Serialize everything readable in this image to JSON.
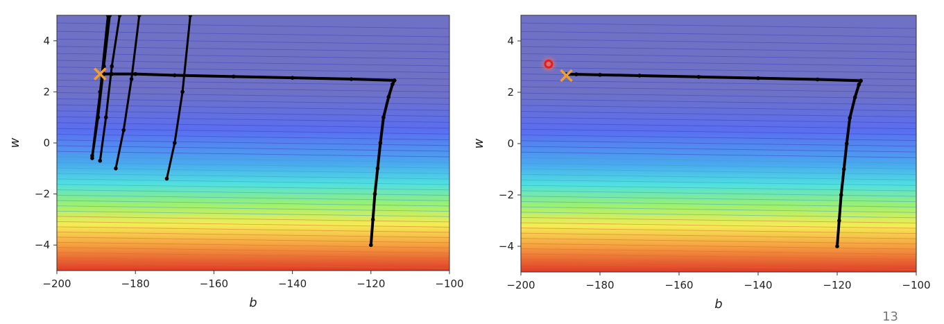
{
  "page_number": "13",
  "colors": {
    "low": "#6a6fd8",
    "high": "#d84a2a",
    "path": "#000000",
    "target": "#f0a030",
    "marker": "#e0201c"
  },
  "chart_data": [
    {
      "type": "line",
      "xlabel": "b",
      "ylabel": "w",
      "xlim": [
        -200,
        -100
      ],
      "ylim": [
        -5,
        5
      ],
      "xticks": [
        "−200",
        "−180",
        "−160",
        "−140",
        "−120",
        "−100"
      ],
      "yticks": [
        "4",
        "2",
        "0",
        "−2",
        "−4"
      ],
      "background": "loss contour (jet colormap), high near w=-5",
      "target_marker": {
        "shape": "x",
        "x": -189,
        "y": 2.7,
        "color": "#f0a030"
      },
      "series": [
        {
          "values": [
            [
              -120,
              -4.0
            ],
            [
              -119.5,
              -3.0
            ],
            [
              -119,
              -2.0
            ],
            [
              -118.3,
              -1.0
            ],
            [
              -117.6,
              0.0
            ],
            [
              -116.8,
              1.0
            ],
            [
              -115.5,
              1.8
            ],
            [
              -114.5,
              2.3
            ],
            [
              -114,
              2.45
            ],
            [
              -125,
              2.5
            ],
            [
              -140,
              2.55
            ],
            [
              -155,
              2.6
            ],
            [
              -170,
              2.65
            ],
            [
              -180,
              2.7
            ],
            [
              -186,
              2.7
            ],
            [
              -188,
              2.7
            ],
            [
              -189,
              2.7
            ]
          ]
        },
        {
          "values": [
            [
              -172,
              -1.4
            ],
            [
              -170,
              0.0
            ],
            [
              -168,
              2.0
            ],
            [
              -166,
              5.0
            ]
          ]
        },
        {
          "values": [
            [
              -185,
              -1.0
            ],
            [
              -183,
              0.5
            ],
            [
              -181,
              2.5
            ],
            [
              -179,
              5.0
            ]
          ]
        },
        {
          "values": [
            [
              -189,
              -0.7
            ],
            [
              -187.5,
              1.0
            ],
            [
              -186,
              3.0
            ],
            [
              -184,
              5.0
            ]
          ]
        },
        {
          "values": [
            [
              -191,
              -0.6
            ],
            [
              -189.5,
              1.0
            ],
            [
              -188,
              3.0
            ],
            [
              -186.5,
              5.0
            ]
          ]
        },
        {
          "values": [
            [
              -191,
              -0.5
            ],
            [
              -189,
              2.0
            ],
            [
              -187,
              5.0
            ]
          ]
        }
      ]
    },
    {
      "type": "line",
      "xlabel": "b",
      "ylabel": "w",
      "xlim": [
        -200,
        -100
      ],
      "ylim": [
        -5,
        5
      ],
      "xticks": [
        "−200",
        "−180",
        "−160",
        "−140",
        "−120",
        "−100"
      ],
      "yticks": [
        "4",
        "2",
        "0",
        "−2",
        "−4"
      ],
      "background": "loss contour (jet colormap), high near w=-5",
      "target_marker": {
        "shape": "x",
        "x": -188.5,
        "y": 2.65,
        "color": "#f0a030"
      },
      "start_marker": {
        "shape": "circle",
        "x": -193,
        "y": 3.1,
        "color": "#e0201c"
      },
      "series": [
        {
          "values": [
            [
              -120,
              -4.0
            ],
            [
              -119.5,
              -3.0
            ],
            [
              -119,
              -2.0
            ],
            [
              -118.3,
              -1.0
            ],
            [
              -117.6,
              0.0
            ],
            [
              -116.8,
              1.0
            ],
            [
              -115.5,
              1.8
            ],
            [
              -114.5,
              2.3
            ],
            [
              -114,
              2.45
            ],
            [
              -125,
              2.5
            ],
            [
              -140,
              2.55
            ],
            [
              -155,
              2.6
            ],
            [
              -170,
              2.65
            ],
            [
              -180,
              2.68
            ],
            [
              -186,
              2.7
            ],
            [
              -188.5,
              2.7
            ]
          ]
        }
      ]
    }
  ]
}
